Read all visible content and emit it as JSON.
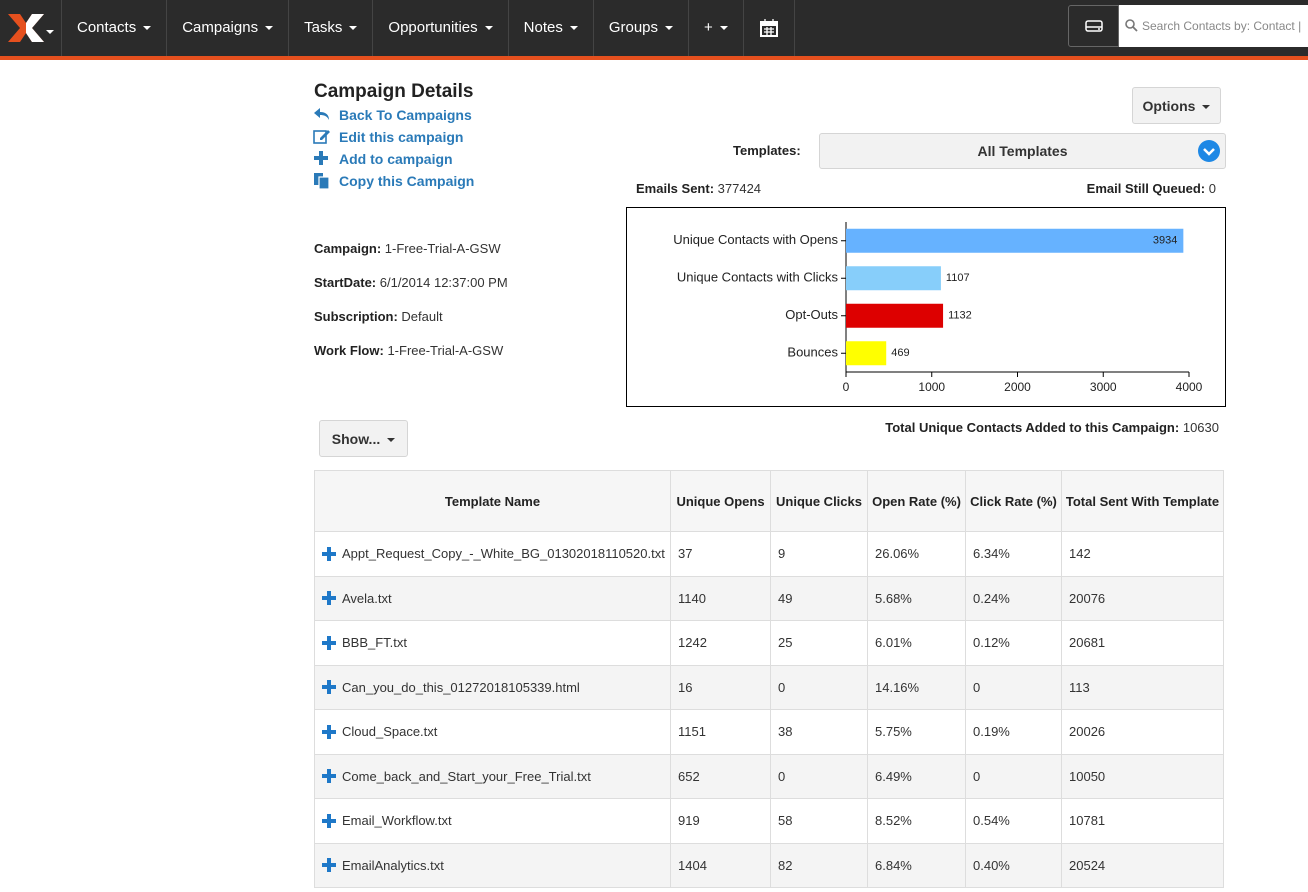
{
  "nav": {
    "items": [
      "Contacts",
      "Campaigns",
      "Tasks",
      "Opportunities",
      "Notes",
      "Groups",
      "+"
    ],
    "search_placeholder": "Search Contacts by: Contact |"
  },
  "header": {
    "title": "Campaign Details",
    "options": "Options",
    "links": [
      "Back To Campaigns",
      "Edit this campaign",
      "Add to campaign",
      "Copy this Campaign"
    ]
  },
  "templates": {
    "label": "Templates:",
    "selected": "All Templates"
  },
  "emails_sent": {
    "label": "Emails Sent:",
    "value": "377424"
  },
  "queued": {
    "label": "Email Still Queued:",
    "value": "0"
  },
  "campaign_info": [
    {
      "label": "Campaign:",
      "value": "1-Free-Trial-A-GSW"
    },
    {
      "label": "StartDate:",
      "value": "6/1/2014 12:37:00 PM"
    },
    {
      "label": "Subscription:",
      "value": "Default"
    },
    {
      "label": "Work Flow:",
      "value": "1-Free-Trial-A-GSW"
    }
  ],
  "chart_data": {
    "type": "bar",
    "orientation": "horizontal",
    "categories": [
      "Unique Contacts with Opens",
      "Unique Contacts with Clicks",
      "Opt-Outs",
      "Bounces"
    ],
    "values": [
      3934,
      1107,
      1132,
      469
    ],
    "colors": [
      "#66b2ff",
      "#87cefa",
      "#dd0000",
      "#ffff00"
    ],
    "xlim": [
      0,
      4000
    ],
    "xticks": [
      0,
      1000,
      2000,
      3000,
      4000
    ]
  },
  "total_unique": {
    "label": "Total Unique Contacts Added to this Campaign:",
    "value": "10630"
  },
  "show_button": "Show...",
  "table": {
    "headers": [
      "Template Name",
      "Unique Opens",
      "Unique Clicks",
      "Open Rate (%)",
      "Click Rate (%)",
      "Total Sent With Template"
    ],
    "rows": [
      [
        "Appt_Request_Copy_-_White_BG_01302018110520.txt",
        "37",
        "9",
        "26.06%",
        "6.34%",
        "142"
      ],
      [
        "Avela.txt",
        "1140",
        "49",
        "5.68%",
        "0.24%",
        "20076"
      ],
      [
        "BBB_FT.txt",
        "1242",
        "25",
        "6.01%",
        "0.12%",
        "20681"
      ],
      [
        "Can_you_do_this_01272018105339.html",
        "16",
        "0",
        "14.16%",
        "0",
        "113"
      ],
      [
        "Cloud_Space.txt",
        "1151",
        "38",
        "5.75%",
        "0.19%",
        "20026"
      ],
      [
        "Come_back_and_Start_your_Free_Trial.txt",
        "652",
        "0",
        "6.49%",
        "0",
        "10050"
      ],
      [
        "Email_Workflow.txt",
        "919",
        "58",
        "8.52%",
        "0.54%",
        "10781"
      ],
      [
        "EmailAnalytics.txt",
        "1404",
        "82",
        "6.84%",
        "0.40%",
        "20524"
      ]
    ]
  }
}
